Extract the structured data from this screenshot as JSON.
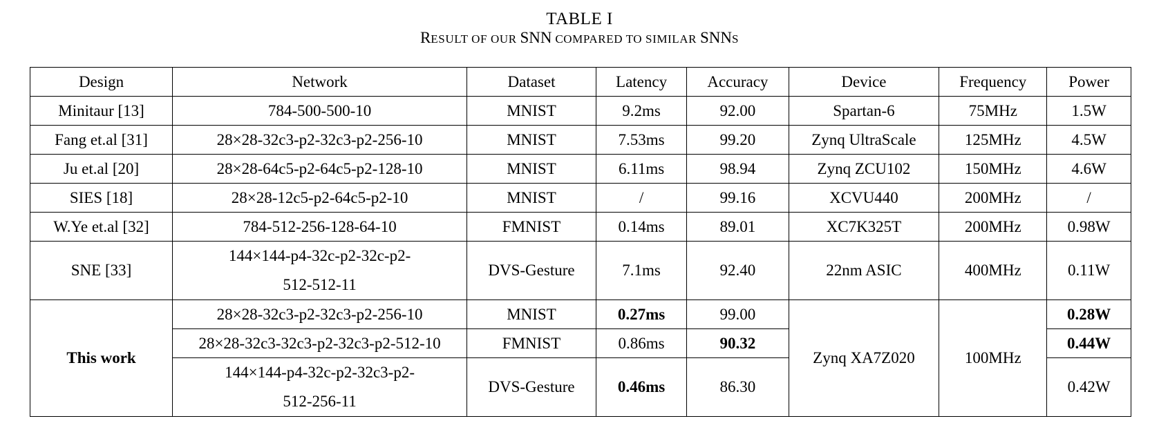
{
  "caption": {
    "table_number": "TABLE I",
    "title_R": "R",
    "title_1": "ESULT OF OUR ",
    "title_SNN": "SNN",
    "title_2": " COMPARED TO SIMILAR ",
    "title_SNNs_caps": "SNN",
    "title_SNNs_s": "S"
  },
  "headers": [
    "Design",
    "Network",
    "Dataset",
    "Latency",
    "Accuracy",
    "Device",
    "Frequency",
    "Power"
  ],
  "rows": [
    {
      "design": "Minitaur [13]",
      "network": "784-500-500-10",
      "dataset": "MNIST",
      "latency": "9.2ms",
      "accuracy": "92.00",
      "device": "Spartan-6",
      "frequency": "75MHz",
      "power": "1.5W"
    },
    {
      "design": "Fang et.al [31]",
      "network": "28×28-32c3-p2-32c3-p2-256-10",
      "dataset": "MNIST",
      "latency": "7.53ms",
      "accuracy": "99.20",
      "device": "Zynq UltraScale",
      "frequency": "125MHz",
      "power": "4.5W"
    },
    {
      "design": "Ju et.al [20]",
      "network": "28×28-64c5-p2-64c5-p2-128-10",
      "dataset": "MNIST",
      "latency": "6.11ms",
      "accuracy": "98.94",
      "device": "Zynq ZCU102",
      "frequency": "150MHz",
      "power": "4.6W"
    },
    {
      "design": "SIES [18]",
      "network": "28×28-12c5-p2-64c5-p2-10",
      "dataset": "MNIST",
      "latency": "/",
      "accuracy": "99.16",
      "device": "XCVU440",
      "frequency": "200MHz",
      "power": "/"
    },
    {
      "design": "W.Ye et.al [32]",
      "network": "784-512-256-128-64-10",
      "dataset": "FMNIST",
      "latency": "0.14ms",
      "accuracy": "89.01",
      "device": "XC7K325T",
      "frequency": "200MHz",
      "power": "0.98W"
    },
    {
      "design": "SNE [33]",
      "network_line1": "144×144-p4-32c-p2-32c-p2-",
      "network_line2": "512-512-11",
      "dataset": "DVS-Gesture",
      "latency": "7.1ms",
      "accuracy": "92.40",
      "device": "22nm ASIC",
      "frequency": "400MHz",
      "power": "0.11W"
    }
  ],
  "this_work": {
    "design": "This work",
    "device": "Zynq XA7Z020",
    "frequency": "100MHz",
    "rows": [
      {
        "network": "28×28-32c3-p2-32c3-p2-256-10",
        "dataset": "MNIST",
        "latency": "0.27ms",
        "accuracy": "99.00",
        "power": "0.28W"
      },
      {
        "network": "28×28-32c3-32c3-p2-32c3-p2-512-10",
        "dataset": "FMNIST",
        "latency": "0.86ms",
        "accuracy": "90.32",
        "power": "0.44W"
      },
      {
        "network_line1": "144×144-p4-32c-p2-32c3-p2-",
        "network_line2": "512-256-11",
        "dataset": "DVS-Gesture",
        "latency": "0.46ms",
        "accuracy": "86.30",
        "power": "0.42W"
      }
    ]
  }
}
